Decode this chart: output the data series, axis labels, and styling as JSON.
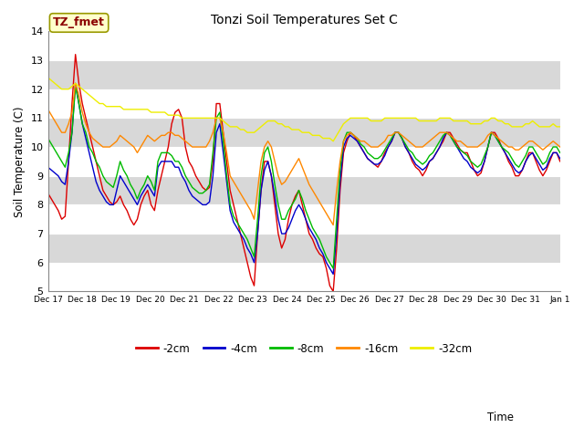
{
  "title": "Tonzi Soil Temperatures Set C",
  "xlabel": "Time",
  "ylabel": "Soil Temperature (C)",
  "ylim": [
    5.0,
    14.0
  ],
  "yticks": [
    5.0,
    6.0,
    7.0,
    8.0,
    9.0,
    10.0,
    11.0,
    12.0,
    13.0,
    14.0
  ],
  "colors": {
    "-2cm": "#dd0000",
    "-4cm": "#0000cc",
    "-8cm": "#00bb00",
    "-16cm": "#ff8800",
    "-32cm": "#eeee00"
  },
  "legend_label": "TZ_fmet",
  "series": {
    "-2cm": [
      8.4,
      8.2,
      8.0,
      7.8,
      7.5,
      7.6,
      9.5,
      11.5,
      13.2,
      12.2,
      11.5,
      11.0,
      10.5,
      10.0,
      9.5,
      9.0,
      8.5,
      8.3,
      8.1,
      8.0,
      8.1,
      8.3,
      8.0,
      7.8,
      7.5,
      7.3,
      7.5,
      8.0,
      8.3,
      8.5,
      8.0,
      7.8,
      8.5,
      9.0,
      9.5,
      10.0,
      10.8,
      11.2,
      11.3,
      11.0,
      10.0,
      9.5,
      9.3,
      9.0,
      8.8,
      8.6,
      8.5,
      8.6,
      9.5,
      11.5,
      11.5,
      10.5,
      9.5,
      8.5,
      8.0,
      7.5,
      7.0,
      6.5,
      6.0,
      5.5,
      5.2,
      7.0,
      8.5,
      9.5,
      9.5,
      9.0,
      8.0,
      7.0,
      6.5,
      6.8,
      7.5,
      8.0,
      8.3,
      8.5,
      8.0,
      7.5,
      7.0,
      6.8,
      6.5,
      6.3,
      6.2,
      5.8,
      5.2,
      5.0,
      6.5,
      8.5,
      9.8,
      10.2,
      10.5,
      10.4,
      10.2,
      10.0,
      9.8,
      9.6,
      9.5,
      9.4,
      9.3,
      9.5,
      9.8,
      10.0,
      10.2,
      10.5,
      10.5,
      10.3,
      10.0,
      9.8,
      9.5,
      9.3,
      9.2,
      9.0,
      9.2,
      9.5,
      9.6,
      9.8,
      10.0,
      10.2,
      10.5,
      10.5,
      10.3,
      10.1,
      9.9,
      9.8,
      9.8,
      9.5,
      9.2,
      9.0,
      9.1,
      9.5,
      10.0,
      10.5,
      10.5,
      10.3,
      10.0,
      9.8,
      9.5,
      9.3,
      9.0,
      9.0,
      9.2,
      9.5,
      9.8,
      9.8,
      9.5,
      9.2,
      9.0,
      9.2,
      9.5,
      9.8,
      9.8,
      9.5
    ],
    "-4cm": [
      9.3,
      9.2,
      9.1,
      9.0,
      8.8,
      8.7,
      9.5,
      10.5,
      12.2,
      11.5,
      10.8,
      10.3,
      9.8,
      9.3,
      8.8,
      8.5,
      8.3,
      8.1,
      8.0,
      8.0,
      8.5,
      9.0,
      8.8,
      8.6,
      8.4,
      8.2,
      8.0,
      8.3,
      8.5,
      8.7,
      8.5,
      8.3,
      9.3,
      9.5,
      9.5,
      9.5,
      9.5,
      9.3,
      9.3,
      9.0,
      8.8,
      8.5,
      8.3,
      8.2,
      8.1,
      8.0,
      8.0,
      8.1,
      9.0,
      10.5,
      10.8,
      9.8,
      8.8,
      7.8,
      7.4,
      7.2,
      7.0,
      6.8,
      6.5,
      6.3,
      6.0,
      7.0,
      8.5,
      9.2,
      9.5,
      9.0,
      8.3,
      7.5,
      7.0,
      7.0,
      7.2,
      7.5,
      7.8,
      8.0,
      7.8,
      7.5,
      7.2,
      7.0,
      6.8,
      6.5,
      6.3,
      6.0,
      5.8,
      5.6,
      7.0,
      8.8,
      10.0,
      10.3,
      10.4,
      10.3,
      10.2,
      10.0,
      9.8,
      9.6,
      9.5,
      9.4,
      9.4,
      9.5,
      9.7,
      10.0,
      10.2,
      10.5,
      10.5,
      10.3,
      10.0,
      9.8,
      9.6,
      9.4,
      9.3,
      9.2,
      9.3,
      9.5,
      9.6,
      9.8,
      10.0,
      10.3,
      10.5,
      10.4,
      10.2,
      10.0,
      9.8,
      9.6,
      9.5,
      9.3,
      9.2,
      9.1,
      9.2,
      9.5,
      10.0,
      10.5,
      10.4,
      10.2,
      10.0,
      9.8,
      9.6,
      9.4,
      9.2,
      9.1,
      9.2,
      9.5,
      9.7,
      9.8,
      9.6,
      9.4,
      9.2,
      9.3,
      9.6,
      9.8,
      9.8,
      9.6
    ],
    "-8cm": [
      10.3,
      10.1,
      9.9,
      9.7,
      9.5,
      9.3,
      9.8,
      10.5,
      12.1,
      11.5,
      10.8,
      10.5,
      10.0,
      9.8,
      9.5,
      9.3,
      9.0,
      8.8,
      8.7,
      8.6,
      9.0,
      9.5,
      9.2,
      9.0,
      8.7,
      8.5,
      8.2,
      8.5,
      8.7,
      9.0,
      8.8,
      8.5,
      9.5,
      9.8,
      9.8,
      9.8,
      9.7,
      9.5,
      9.5,
      9.3,
      9.0,
      8.8,
      8.6,
      8.5,
      8.4,
      8.4,
      8.5,
      8.7,
      9.8,
      11.0,
      11.2,
      10.2,
      9.0,
      8.0,
      7.6,
      7.4,
      7.2,
      7.0,
      6.8,
      6.5,
      6.2,
      7.5,
      9.0,
      9.8,
      10.0,
      9.5,
      8.7,
      8.0,
      7.5,
      7.5,
      7.8,
      8.0,
      8.2,
      8.5,
      8.2,
      7.8,
      7.5,
      7.2,
      7.0,
      6.8,
      6.5,
      6.2,
      6.0,
      5.8,
      7.5,
      9.2,
      10.2,
      10.5,
      10.5,
      10.4,
      10.3,
      10.1,
      10.0,
      9.8,
      9.7,
      9.6,
      9.6,
      9.7,
      9.9,
      10.1,
      10.3,
      10.5,
      10.5,
      10.3,
      10.1,
      9.9,
      9.8,
      9.6,
      9.5,
      9.4,
      9.5,
      9.7,
      9.8,
      10.0,
      10.2,
      10.4,
      10.5,
      10.4,
      10.2,
      10.0,
      9.9,
      9.8,
      9.7,
      9.5,
      9.4,
      9.3,
      9.4,
      9.7,
      10.0,
      10.5,
      10.4,
      10.2,
      10.0,
      9.9,
      9.8,
      9.6,
      9.4,
      9.3,
      9.5,
      9.7,
      10.0,
      10.0,
      9.8,
      9.6,
      9.4,
      9.5,
      9.8,
      10.0,
      10.0,
      9.8
    ],
    "-16cm": [
      11.3,
      11.1,
      10.9,
      10.7,
      10.5,
      10.5,
      10.8,
      11.2,
      12.2,
      11.8,
      11.2,
      10.8,
      10.5,
      10.3,
      10.2,
      10.1,
      10.0,
      10.0,
      10.0,
      10.1,
      10.2,
      10.4,
      10.3,
      10.2,
      10.1,
      10.0,
      9.8,
      10.0,
      10.2,
      10.4,
      10.3,
      10.2,
      10.3,
      10.4,
      10.4,
      10.5,
      10.5,
      10.4,
      10.4,
      10.3,
      10.2,
      10.1,
      10.0,
      10.0,
      10.0,
      10.0,
      10.0,
      10.2,
      10.5,
      11.0,
      11.0,
      10.5,
      9.8,
      9.0,
      8.8,
      8.6,
      8.4,
      8.2,
      8.0,
      7.8,
      7.5,
      8.5,
      9.5,
      10.0,
      10.2,
      10.0,
      9.5,
      9.0,
      8.7,
      8.8,
      9.0,
      9.2,
      9.4,
      9.6,
      9.3,
      9.0,
      8.7,
      8.5,
      8.3,
      8.1,
      7.9,
      7.7,
      7.5,
      7.3,
      8.5,
      9.5,
      10.2,
      10.4,
      10.5,
      10.4,
      10.3,
      10.2,
      10.2,
      10.1,
      10.0,
      10.0,
      10.0,
      10.1,
      10.2,
      10.4,
      10.4,
      10.5,
      10.5,
      10.4,
      10.3,
      10.2,
      10.1,
      10.0,
      10.0,
      10.0,
      10.1,
      10.2,
      10.3,
      10.4,
      10.5,
      10.5,
      10.5,
      10.4,
      10.3,
      10.2,
      10.2,
      10.1,
      10.0,
      10.0,
      10.0,
      10.0,
      10.1,
      10.2,
      10.4,
      10.5,
      10.4,
      10.3,
      10.2,
      10.1,
      10.0,
      10.0,
      9.9,
      9.9,
      10.0,
      10.1,
      10.2,
      10.2,
      10.1,
      10.0,
      9.9,
      10.0,
      10.1,
      10.2,
      10.1,
      10.0
    ],
    "-32cm": [
      12.4,
      12.3,
      12.2,
      12.1,
      12.0,
      12.0,
      12.0,
      12.1,
      12.2,
      12.1,
      12.0,
      11.9,
      11.8,
      11.7,
      11.6,
      11.5,
      11.5,
      11.4,
      11.4,
      11.4,
      11.4,
      11.4,
      11.3,
      11.3,
      11.3,
      11.3,
      11.3,
      11.3,
      11.3,
      11.3,
      11.2,
      11.2,
      11.2,
      11.2,
      11.2,
      11.1,
      11.1,
      11.1,
      11.1,
      11.0,
      11.0,
      11.0,
      11.0,
      11.0,
      11.0,
      11.0,
      11.0,
      11.0,
      11.0,
      11.0,
      11.0,
      10.9,
      10.8,
      10.7,
      10.7,
      10.7,
      10.6,
      10.6,
      10.5,
      10.5,
      10.5,
      10.6,
      10.7,
      10.8,
      10.9,
      10.9,
      10.9,
      10.8,
      10.8,
      10.7,
      10.7,
      10.6,
      10.6,
      10.6,
      10.5,
      10.5,
      10.5,
      10.4,
      10.4,
      10.4,
      10.3,
      10.3,
      10.3,
      10.2,
      10.4,
      10.6,
      10.8,
      10.9,
      11.0,
      11.0,
      11.0,
      11.0,
      11.0,
      11.0,
      10.9,
      10.9,
      10.9,
      10.9,
      11.0,
      11.0,
      11.0,
      11.0,
      11.0,
      11.0,
      11.0,
      11.0,
      11.0,
      11.0,
      10.9,
      10.9,
      10.9,
      10.9,
      10.9,
      10.9,
      11.0,
      11.0,
      11.0,
      11.0,
      10.9,
      10.9,
      10.9,
      10.9,
      10.9,
      10.8,
      10.8,
      10.8,
      10.8,
      10.9,
      10.9,
      11.0,
      11.0,
      10.9,
      10.9,
      10.8,
      10.8,
      10.7,
      10.7,
      10.7,
      10.7,
      10.8,
      10.8,
      10.9,
      10.8,
      10.7,
      10.7,
      10.7,
      10.7,
      10.8,
      10.7,
      10.7
    ]
  },
  "xtick_labels": [
    "Dec 17",
    "Dec 18",
    "Dec 19",
    "Dec 20",
    "Dec 21",
    "Dec 22",
    "Dec 23",
    "Dec 24",
    "Dec 25",
    "Dec 26",
    "Dec 27",
    "Dec 28",
    "Dec 29",
    "Dec 30",
    "Dec 31",
    "Jan 1"
  ],
  "band_colors": [
    "#ffffff",
    "#d8d8d8"
  ],
  "fig_size": [
    6.4,
    4.8
  ],
  "dpi": 100
}
